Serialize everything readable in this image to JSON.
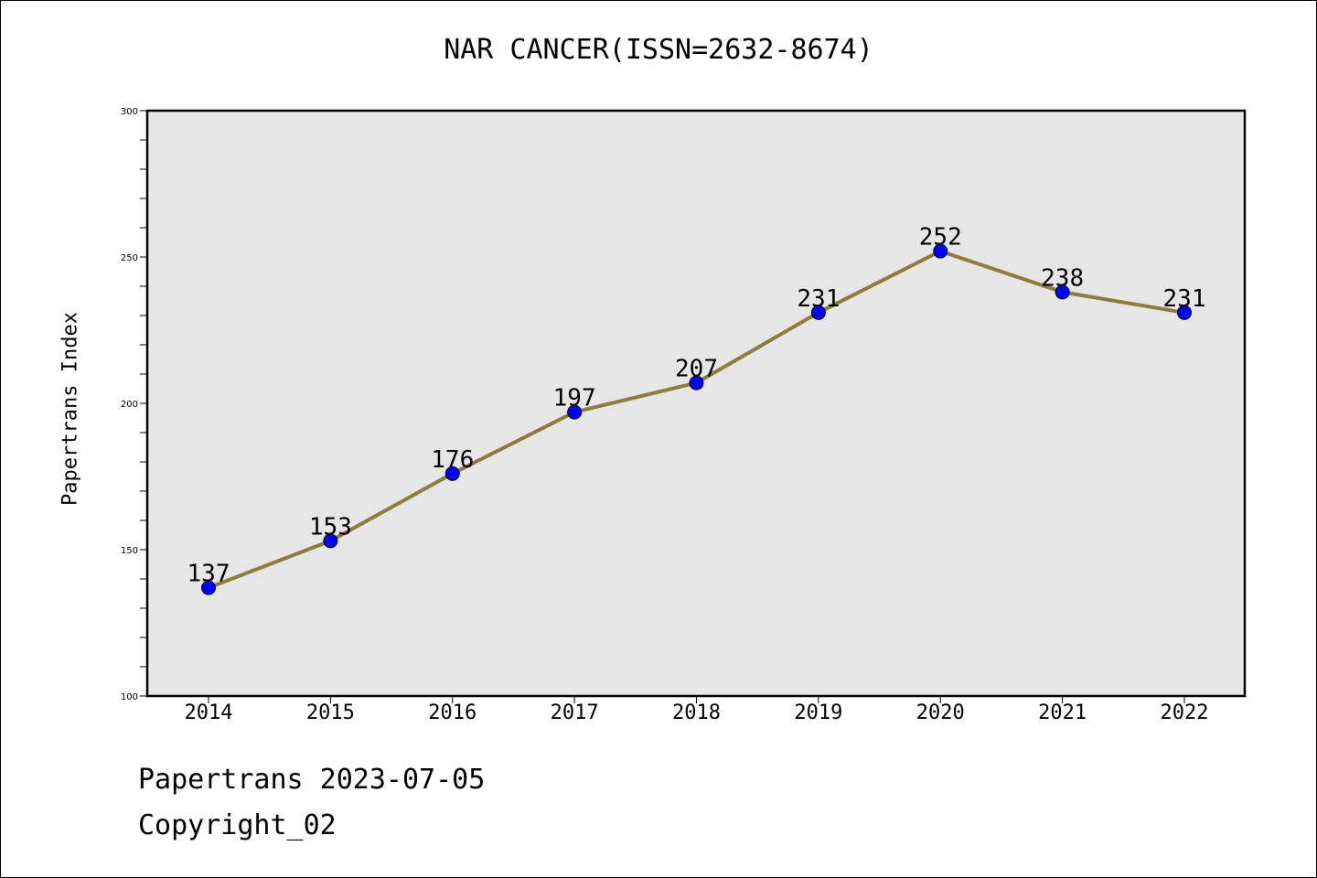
{
  "chart_data": {
    "type": "line",
    "title": "NAR CANCER(ISSN=2632-8674)",
    "xlabel": "",
    "ylabel": "Papertrans Index",
    "categories": [
      "2014",
      "2015",
      "2016",
      "2017",
      "2018",
      "2019",
      "2020",
      "2021",
      "2022"
    ],
    "series": [
      {
        "values": [
          137,
          153,
          176,
          197,
          207,
          231,
          252,
          238,
          231
        ]
      }
    ],
    "ylim": [
      100,
      300
    ],
    "yticks": [
      100,
      150,
      200,
      250,
      300
    ],
    "grid": false,
    "line_color": "#8B7D3A",
    "marker_color": "#0000FF",
    "plot_background": "#E6E6E6"
  },
  "footer": {
    "line1": "Papertrans 2023-07-05",
    "line2": "Copyright_02"
  }
}
